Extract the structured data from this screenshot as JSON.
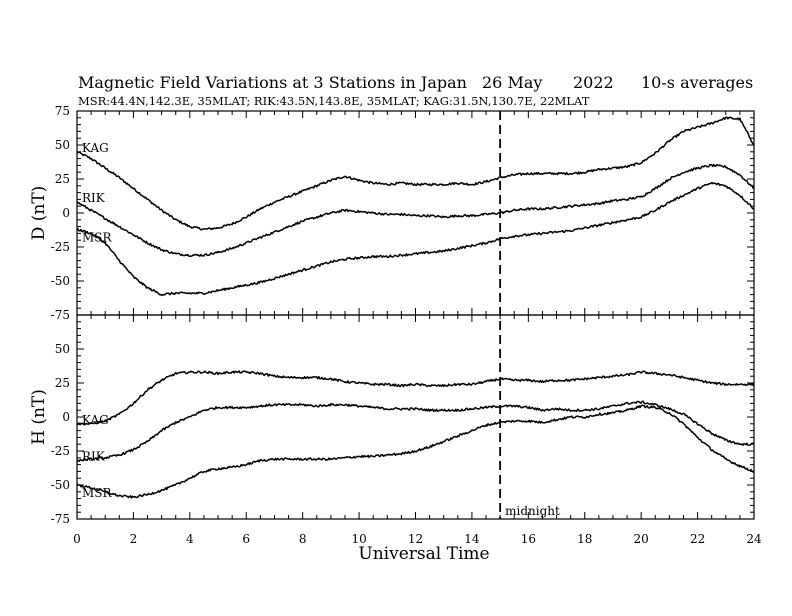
{
  "chart_data": {
    "type": "line",
    "title": {
      "main": "Magnetic Field Variations at 3 Stations in Japan",
      "date": "26 May",
      "year": "2022",
      "averaging": "10-s averages"
    },
    "subtitle": "MSR:44.4N,142.3E, 35MLAT;  RIK:43.5N,143.8E, 35MLAT;  KAG:31.5N,130.7E, 22MLAT",
    "xlabel": "Universal Time",
    "xlim": [
      0,
      24
    ],
    "x_ticks": [
      "0",
      "2",
      "4",
      "6",
      "8",
      "10",
      "12",
      "14",
      "16",
      "18",
      "20",
      "22",
      "24"
    ],
    "midnight": {
      "x": 15,
      "label": "midnight"
    },
    "panels": [
      {
        "ylabel": "D (nT)",
        "ylim": [
          -75,
          75
        ],
        "y_ticks": [
          "75",
          "50",
          "25",
          "0",
          "-25",
          "-50",
          "-75"
        ],
        "series": [
          {
            "name": "KAG",
            "x": [
              0,
              0.5,
              1,
              1.5,
              2,
              2.5,
              3,
              3.5,
              4,
              4.5,
              5,
              5.5,
              6,
              6.5,
              7,
              7.5,
              8,
              8.5,
              9,
              9.5,
              10,
              10.5,
              11,
              11.5,
              12,
              12.5,
              13,
              13.5,
              14,
              14.5,
              15,
              15.5,
              16,
              16.5,
              17,
              17.5,
              18,
              18.5,
              19,
              19.5,
              20,
              20.5,
              21,
              21.5,
              22,
              22.5,
              23,
              23.5,
              24
            ],
            "values": [
              45,
              40,
              33,
              26,
              18,
              10,
              2,
              -5,
              -10,
              -12,
              -11,
              -8,
              -3,
              3,
              8,
              12,
              16,
              20,
              24,
              27,
              24,
              22,
              21,
              22,
              21,
              21,
              21,
              22,
              21,
              23,
              26,
              28,
              29,
              29,
              29,
              29,
              30,
              32,
              33,
              34,
              37,
              44,
              53,
              60,
              63,
              66,
              70,
              69,
              50
            ]
          },
          {
            "name": "RIK",
            "x": [
              0,
              0.5,
              1,
              1.5,
              2,
              2.5,
              3,
              3.5,
              4,
              4.5,
              5,
              5.5,
              6,
              6.5,
              7,
              7.5,
              8,
              8.5,
              9,
              9.5,
              10,
              10.5,
              11,
              11.5,
              12,
              12.5,
              13,
              13.5,
              14,
              14.5,
              15,
              15.5,
              16,
              16.5,
              17,
              17.5,
              18,
              18.5,
              19,
              19.5,
              20,
              20.5,
              21,
              21.5,
              22,
              22.5,
              23,
              23.5,
              24
            ],
            "values": [
              8,
              2,
              -4,
              -10,
              -16,
              -22,
              -27,
              -30,
              -31,
              -31,
              -29,
              -26,
              -22,
              -18,
              -14,
              -10,
              -6,
              -3,
              0,
              2,
              1,
              0,
              -1,
              -1,
              -2,
              -2,
              -3,
              -2,
              -2,
              -1,
              0,
              2,
              3,
              3,
              4,
              5,
              6,
              7,
              9,
              10,
              12,
              18,
              25,
              30,
              33,
              35,
              34,
              28,
              18
            ]
          },
          {
            "name": "MSR",
            "x": [
              0,
              0.5,
              1,
              1.5,
              2,
              2.5,
              3,
              3.5,
              4,
              4.5,
              5,
              5.5,
              6,
              6.5,
              7,
              7.5,
              8,
              8.5,
              9,
              9.5,
              10,
              10.5,
              11,
              11.5,
              12,
              12.5,
              13,
              13.5,
              14,
              14.5,
              15,
              15.5,
              16,
              16.5,
              17,
              17.5,
              18,
              18.5,
              19,
              19.5,
              20,
              20.5,
              21,
              21.5,
              22,
              22.5,
              23,
              23.5,
              24
            ],
            "values": [
              -12,
              -15,
              -22,
              -35,
              -47,
              -55,
              -60,
              -59,
              -59,
              -59,
              -57,
              -55,
              -53,
              -51,
              -48,
              -45,
              -42,
              -39,
              -36,
              -34,
              -33,
              -32,
              -32,
              -31,
              -30,
              -29,
              -28,
              -26,
              -24,
              -22,
              -19,
              -17,
              -16,
              -15,
              -14,
              -13,
              -11,
              -9,
              -7,
              -5,
              -3,
              2,
              8,
              13,
              18,
              22,
              20,
              13,
              3
            ]
          }
        ]
      },
      {
        "ylabel": "H (nT)",
        "ylim": [
          -75,
          75
        ],
        "y_ticks": [
          "75",
          "50",
          "25",
          "0",
          "-25",
          "-50",
          "-75"
        ],
        "series": [
          {
            "name": "KAG",
            "x": [
              0,
              0.5,
              1,
              1.5,
              2,
              2.5,
              3,
              3.5,
              4,
              4.5,
              5,
              5.5,
              6,
              6.5,
              7,
              7.5,
              8,
              8.5,
              9,
              9.5,
              10,
              10.5,
              11,
              11.5,
              12,
              12.5,
              13,
              13.5,
              14,
              14.5,
              15,
              15.5,
              16,
              16.5,
              17,
              17.5,
              18,
              18.5,
              19,
              19.5,
              20,
              20.5,
              21,
              21.5,
              22,
              22.5,
              23,
              23.5,
              24
            ],
            "values": [
              -5,
              -5,
              -3,
              2,
              10,
              20,
              27,
              32,
              33,
              33,
              32,
              33,
              33,
              32,
              30,
              29,
              29,
              29,
              28,
              26,
              25,
              24,
              24,
              23,
              24,
              23,
              23,
              24,
              24,
              26,
              28,
              27,
              27,
              26,
              27,
              27,
              28,
              29,
              30,
              31,
              33,
              32,
              31,
              29,
              27,
              25,
              24,
              24,
              24
            ]
          },
          {
            "name": "RIK",
            "x": [
              0,
              0.5,
              1,
              1.5,
              2,
              2.5,
              3,
              3.5,
              4,
              4.5,
              5,
              5.5,
              6,
              6.5,
              7,
              7.5,
              8,
              8.5,
              9,
              9.5,
              10,
              10.5,
              11,
              11.5,
              12,
              12.5,
              13,
              13.5,
              14,
              14.5,
              15,
              15.5,
              16,
              16.5,
              17,
              17.5,
              18,
              18.5,
              19,
              19.5,
              20,
              20.5,
              21,
              21.5,
              22,
              22.5,
              23,
              23.5,
              24
            ],
            "values": [
              -32,
              -31,
              -30,
              -28,
              -24,
              -18,
              -10,
              -4,
              0,
              5,
              7,
              7,
              7,
              8,
              9,
              9,
              9,
              8,
              9,
              9,
              8,
              7,
              6,
              6,
              6,
              5,
              5,
              5,
              6,
              7,
              8,
              8,
              7,
              5,
              6,
              5,
              5,
              6,
              8,
              10,
              11,
              9,
              6,
              2,
              -5,
              -12,
              -17,
              -20,
              -20
            ]
          },
          {
            "name": "MSR",
            "x": [
              0,
              0.5,
              1,
              1.5,
              2,
              2.5,
              3,
              3.5,
              4,
              4.5,
              5,
              5.5,
              6,
              6.5,
              7,
              7.5,
              8,
              8.5,
              9,
              9.5,
              10,
              10.5,
              11,
              11.5,
              12,
              12.5,
              13,
              13.5,
              14,
              14.5,
              15,
              15.5,
              16,
              16.5,
              17,
              17.5,
              18,
              18.5,
              19,
              19.5,
              20,
              20.5,
              21,
              21.5,
              22,
              22.5,
              23,
              23.5,
              24
            ],
            "values": [
              -50,
              -52,
              -55,
              -58,
              -59,
              -57,
              -54,
              -50,
              -45,
              -40,
              -38,
              -37,
              -35,
              -32,
              -31,
              -31,
              -31,
              -31,
              -31,
              -30,
              -29,
              -29,
              -28,
              -27,
              -25,
              -22,
              -18,
              -14,
              -10,
              -6,
              -4,
              -3,
              -3,
              -4,
              -2,
              0,
              0,
              2,
              3,
              5,
              8,
              7,
              3,
              -5,
              -15,
              -24,
              -31,
              -36,
              -40
            ]
          }
        ]
      }
    ],
    "line_color": "#000000",
    "background": "#ffffff"
  }
}
